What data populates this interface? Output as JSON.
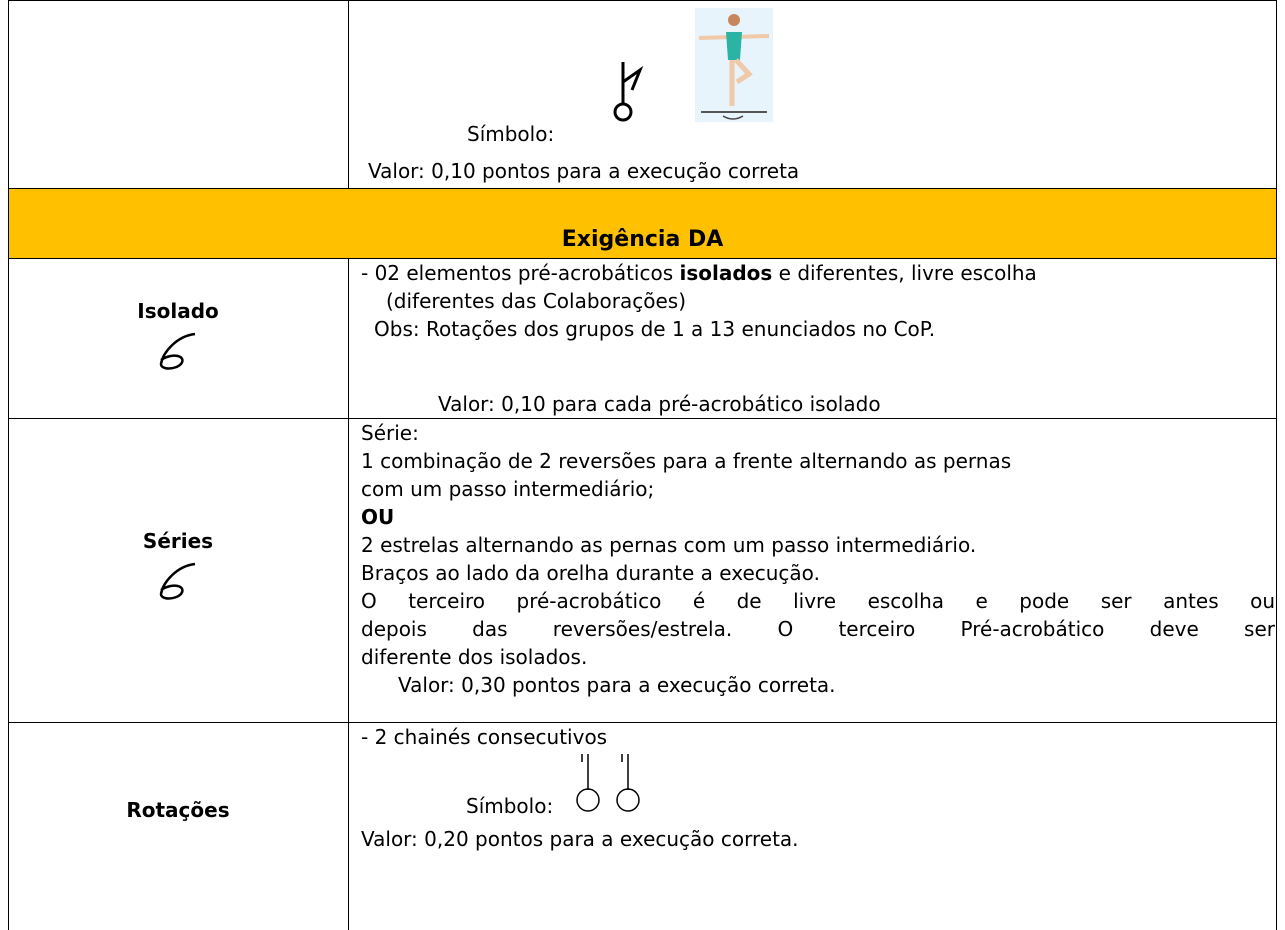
{
  "top_row": {
    "symbol_label": "Símbolo:",
    "value_text": "Valor: 0,10 pontos para a execução correta"
  },
  "header": {
    "title": "Exigência DA"
  },
  "rows": [
    {
      "label": "Isolado",
      "lines": [
        {
          "before": "- 02 elementos pré-acrobáticos",
          "bold": "isolados",
          "after": "e diferentes, livre escolha"
        },
        "(diferentes das Colaborações)",
        "Obs: Rotações dos grupos de 1 a 13 enunciados no CoP.",
        "Valor: 0,10 para cada pré-acrobático isolado"
      ]
    },
    {
      "label": "Séries",
      "lines": [
        "Série:",
        "1 combinação de 2 reversões para a frente alternando as pernas",
        "com um passo intermediário;",
        "OU",
        "2 estrelas alternando as pernas com um passo intermediário.",
        "Braços ao lado da orelha durante a execução.",
        "O terceiro pré-acrobático é de livre escolha e pode ser antes ou",
        "depois das reversões/estrela. O terceiro Pré-acrobático deve ser",
        "diferente dos isolados.",
        "Valor: 0,30 pontos para a execução correta."
      ]
    },
    {
      "label": "Rotações",
      "lines": [
        "- 2 chainés consecutivos",
        "Símbolo:",
        "Valor: 0,20 pontos para a execução correta."
      ]
    }
  ]
}
